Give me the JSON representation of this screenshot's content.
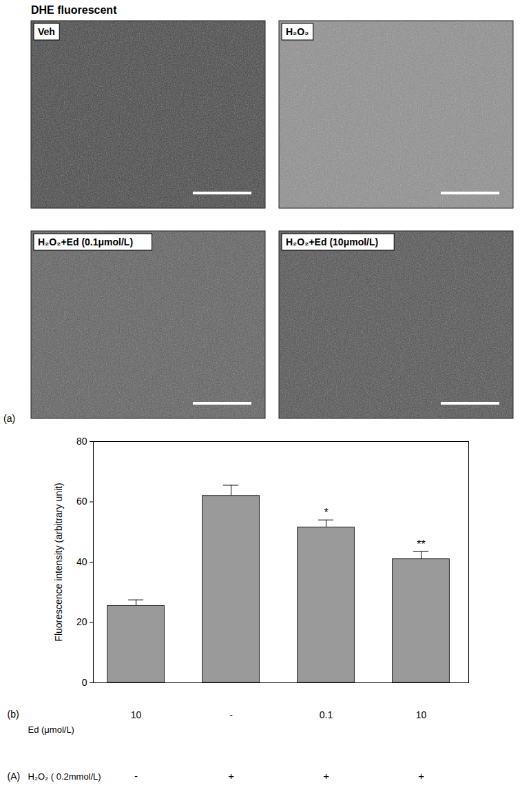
{
  "figure_label": "(A)",
  "image_panel": {
    "panel_label": "(a)",
    "title": "DHE fluorescent",
    "images": [
      {
        "label": "Veh"
      },
      {
        "label": "H₂O₂"
      },
      {
        "label": "H₂O₂+Ed (0.1μmol/L)"
      },
      {
        "label": "H₂O₂+Ed (10μmol/L)"
      }
    ]
  },
  "chart_data": {
    "type": "bar",
    "panel_label": "(b)",
    "ylabel": "Fluorescence intensity (arbitrary unit)",
    "category_title": "Ed (μmol/L)",
    "categories": [
      "10",
      "-",
      "0.1",
      "10"
    ],
    "second_row": {
      "title": "H₂O₂ ( 0.2mmol/L)",
      "labels": [
        "-",
        "+",
        "+",
        "+"
      ]
    },
    "values": [
      25.5,
      62,
      51.5,
      41
    ],
    "errors": [
      2,
      3.5,
      2.5,
      2.5
    ],
    "annotations": [
      null,
      null,
      "*",
      "**"
    ],
    "color": "#9a9a9a",
    "ylim": [
      0,
      80
    ],
    "yticks": [
      0,
      20,
      40,
      60,
      80
    ]
  }
}
